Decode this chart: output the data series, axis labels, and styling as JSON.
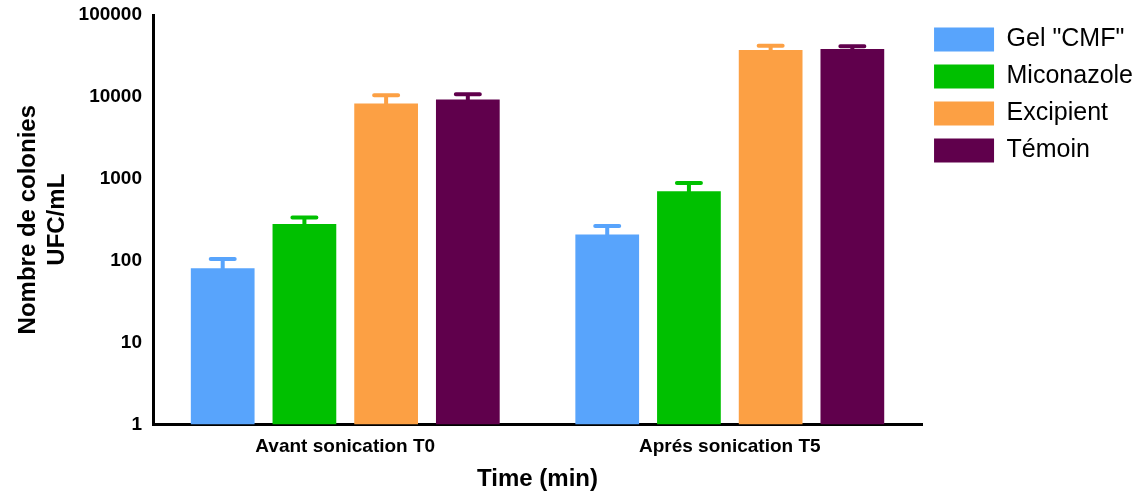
{
  "chart_data": {
    "type": "bar",
    "xlabel": "Time (min)",
    "ylabel": "Nombre de colonies\nUFC/mL",
    "categories": [
      "Avant sonication T0",
      "Aprés sonication T5"
    ],
    "series": [
      {
        "name": "Gel \"CMF\"",
        "color": "#58a4fc",
        "values": [
          81,
          208
        ],
        "errors": [
          24,
          57
        ]
      },
      {
        "name": "Miconazole",
        "color": "#00c000",
        "values": [
          280,
          705
        ],
        "errors": [
          56,
          185
        ]
      },
      {
        "name": "Excipient",
        "color": "#fca044",
        "values": [
          8300,
          37500
        ],
        "errors": [
          2200,
          4500
        ]
      },
      {
        "name": "Témoin",
        "color": "#60004c",
        "values": [
          9300,
          38500
        ],
        "errors": [
          1500,
          3000
        ]
      }
    ],
    "log": "y",
    "ylim": [
      1,
      100000
    ],
    "yticks": [
      1,
      10,
      100,
      1000,
      10000,
      100000
    ],
    "grid": false,
    "legend": "right"
  }
}
